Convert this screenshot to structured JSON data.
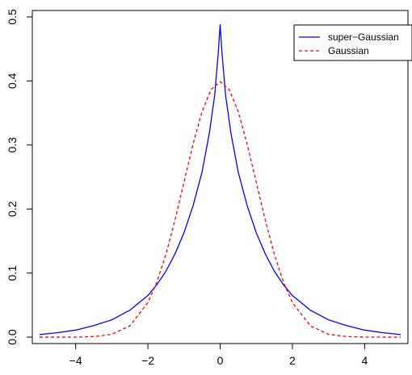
{
  "chart_data": {
    "type": "line",
    "title": "",
    "xlabel": "",
    "ylabel": "",
    "xlim": [
      -5.2,
      5.2
    ],
    "ylim": [
      -0.01,
      0.51
    ],
    "x_ticks": [
      -4,
      -2,
      0,
      2,
      4
    ],
    "x_tick_labels": [
      "−4",
      "−2",
      "0",
      "2",
      "4"
    ],
    "y_ticks": [
      0.0,
      0.1,
      0.2,
      0.3,
      0.4,
      0.5
    ],
    "y_tick_labels": [
      "0.0",
      "0.1",
      "0.2",
      "0.3",
      "0.4",
      "0.5"
    ],
    "grid": false,
    "legend_position": "top-right",
    "series": [
      {
        "name": "super−Gaussian",
        "color": "#0000ff",
        "line_style": "solid",
        "x": [
          -5,
          -4.5,
          -4,
          -3.5,
          -3,
          -2.5,
          -2,
          -1.75,
          -1.5,
          -1.25,
          -1,
          -0.75,
          -0.5,
          -0.3,
          -0.15,
          -0.05,
          0,
          0.05,
          0.15,
          0.3,
          0.5,
          0.75,
          1,
          1.25,
          1.5,
          1.75,
          2,
          2.5,
          3,
          3.5,
          4,
          4.5,
          5
        ],
        "y": [
          0.004,
          0.007,
          0.011,
          0.018,
          0.027,
          0.042,
          0.065,
          0.082,
          0.103,
          0.13,
          0.163,
          0.205,
          0.258,
          0.318,
          0.378,
          0.445,
          0.488,
          0.445,
          0.378,
          0.318,
          0.258,
          0.205,
          0.163,
          0.13,
          0.103,
          0.082,
          0.065,
          0.042,
          0.027,
          0.018,
          0.011,
          0.007,
          0.004
        ]
      },
      {
        "name": "Gaussian",
        "color": "#ff0000",
        "line_style": "dashed",
        "x": [
          -5,
          -4.5,
          -4,
          -3.5,
          -3,
          -2.5,
          -2,
          -1.75,
          -1.5,
          -1.25,
          -1,
          -0.75,
          -0.5,
          -0.25,
          0,
          0.25,
          0.5,
          0.75,
          1,
          1.25,
          1.5,
          1.75,
          2,
          2.5,
          3,
          3.5,
          4,
          4.5,
          5
        ],
        "y": [
          0.0,
          0.0,
          0.0001,
          0.0009,
          0.0044,
          0.0175,
          0.054,
          0.0863,
          0.1295,
          0.1826,
          0.242,
          0.3011,
          0.3521,
          0.3867,
          0.3989,
          0.3867,
          0.3521,
          0.3011,
          0.242,
          0.1826,
          0.1295,
          0.0863,
          0.054,
          0.0175,
          0.0044,
          0.0009,
          0.0001,
          0.0,
          0.0
        ]
      }
    ]
  }
}
